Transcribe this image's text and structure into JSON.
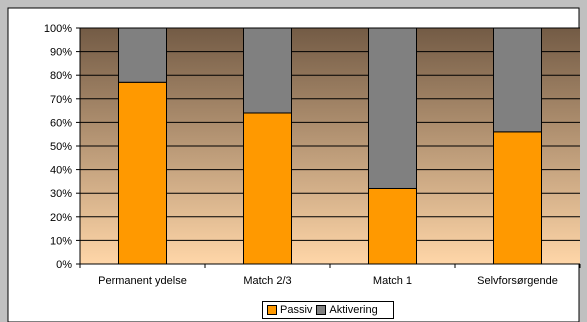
{
  "chart_data": {
    "type": "bar",
    "stacked": true,
    "percent": true,
    "title": "",
    "xlabel": "",
    "ylabel": "",
    "categories": [
      "Permanent ydelse",
      "Match 2/3",
      "Match 1",
      "Selvforsørgende"
    ],
    "series": [
      {
        "name": "Passiv",
        "values": [
          77,
          64,
          32,
          56
        ],
        "color": "#FF9900"
      },
      {
        "name": "Aktivering",
        "values": [
          23,
          36,
          68,
          44
        ],
        "color": "#808080"
      }
    ],
    "ylim": [
      0,
      100
    ],
    "yticks": [
      "0%",
      "10%",
      "20%",
      "30%",
      "40%",
      "50%",
      "60%",
      "70%",
      "80%",
      "90%",
      "100%"
    ],
    "grid": true,
    "legend_position": "bottom",
    "plot_background": {
      "top": "#735B45",
      "bottom": "#FFD6A8"
    }
  },
  "legend": {
    "items": [
      "Passiv",
      "Aktivering"
    ]
  }
}
